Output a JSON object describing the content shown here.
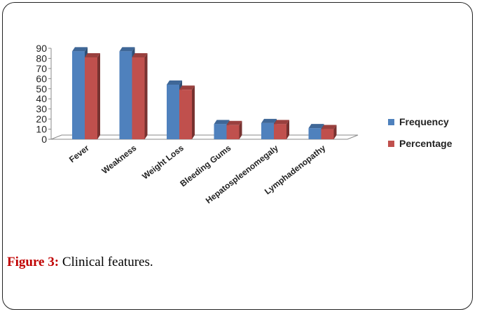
{
  "chart_data": {
    "type": "bar",
    "categories": [
      "Fever",
      "Weakness",
      "Weight Loss",
      "Bleeding Gums",
      "Hepatospleenomegaly",
      "Lymphadenopathy"
    ],
    "series": [
      {
        "name": "Frequency",
        "values": [
          87,
          87,
          54,
          15,
          16,
          11
        ],
        "color": "#4f81bd"
      },
      {
        "name": "Percentage",
        "values": [
          81,
          81,
          49,
          14,
          15,
          10
        ],
        "color": "#c0504d"
      }
    ],
    "ylim": [
      0,
      90
    ],
    "yticks": [
      0,
      10,
      20,
      30,
      40,
      50,
      60,
      70,
      80,
      90
    ],
    "legend_position": "right",
    "grid": false,
    "style": "3d-clustered-column"
  },
  "figure": {
    "label": "Figure 3:",
    "text": " Clinical features."
  }
}
